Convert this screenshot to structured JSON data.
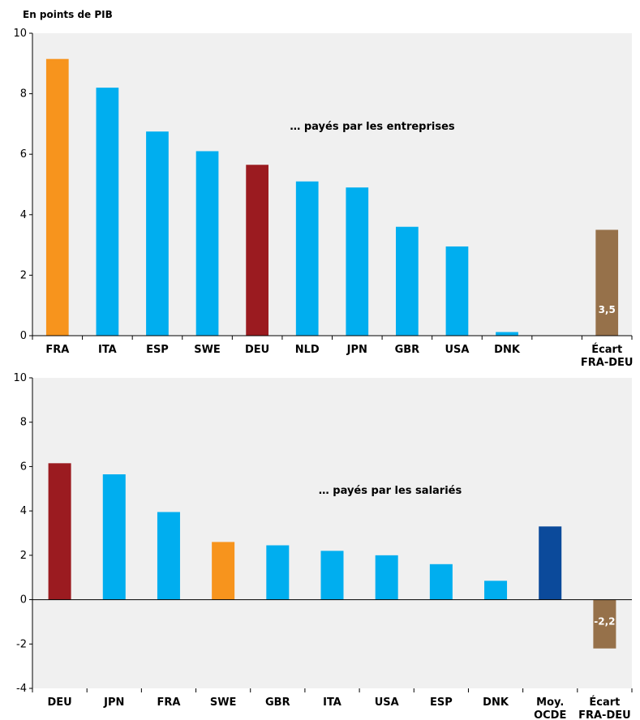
{
  "colors": {
    "plot_bg": "#f0f0f0",
    "blue": "#00aeef",
    "orange": "#f7941d",
    "red": "#9b1b20",
    "brown": "#96714a",
    "navy": "#0b4a9b"
  },
  "chart_data": [
    {
      "type": "bar",
      "unit_label": "En points de PIB",
      "annotation": "… payés par les entreprises",
      "ylim": [
        0,
        10
      ],
      "yticks": [
        "0",
        "2",
        "4",
        "6",
        "8",
        "10"
      ],
      "categories": [
        [
          "FRA"
        ],
        [
          "ITA"
        ],
        [
          "ESP"
        ],
        [
          "SWE"
        ],
        [
          "DEU"
        ],
        [
          "NLD"
        ],
        [
          "JPN"
        ],
        [
          "GBR"
        ],
        [
          "USA"
        ],
        [
          "DNK"
        ],
        [
          ""
        ],
        [
          "Écart",
          "FRA-DEU"
        ]
      ],
      "values": [
        9.15,
        8.2,
        6.75,
        6.1,
        5.65,
        5.1,
        4.9,
        3.6,
        2.95,
        0.12,
        null,
        3.5
      ],
      "bar_colors": [
        "orange",
        "blue",
        "blue",
        "blue",
        "red",
        "blue",
        "blue",
        "blue",
        "blue",
        "blue",
        "blue",
        "brown"
      ],
      "data_labels": [
        "",
        "",
        "",
        "",
        "",
        "",
        "",
        "",
        "",
        "",
        "",
        "3,5"
      ]
    },
    {
      "type": "bar",
      "annotation": "… payés par les salariés",
      "ylim": [
        -4,
        10
      ],
      "yticks": [
        "-4",
        "-2",
        "0",
        "2",
        "4",
        "6",
        "8",
        "10"
      ],
      "categories": [
        [
          "DEU"
        ],
        [
          "JPN"
        ],
        [
          "FRA"
        ],
        [
          "SWE"
        ],
        [
          "GBR"
        ],
        [
          "ITA"
        ],
        [
          "USA"
        ],
        [
          "ESP"
        ],
        [
          "DNK"
        ],
        [
          "Moy.",
          "OCDE"
        ],
        [
          "Écart",
          "FRA-DEU"
        ]
      ],
      "values": [
        6.15,
        5.65,
        3.95,
        2.6,
        2.45,
        2.2,
        2.0,
        1.6,
        0.85,
        3.3,
        -2.2
      ],
      "bar_colors": [
        "red",
        "blue",
        "blue",
        "orange",
        "blue",
        "blue",
        "blue",
        "blue",
        "blue",
        "navy",
        "brown"
      ],
      "data_labels": [
        "",
        "",
        "",
        "",
        "",
        "",
        "",
        "",
        "",
        "",
        "-2,2"
      ]
    }
  ]
}
